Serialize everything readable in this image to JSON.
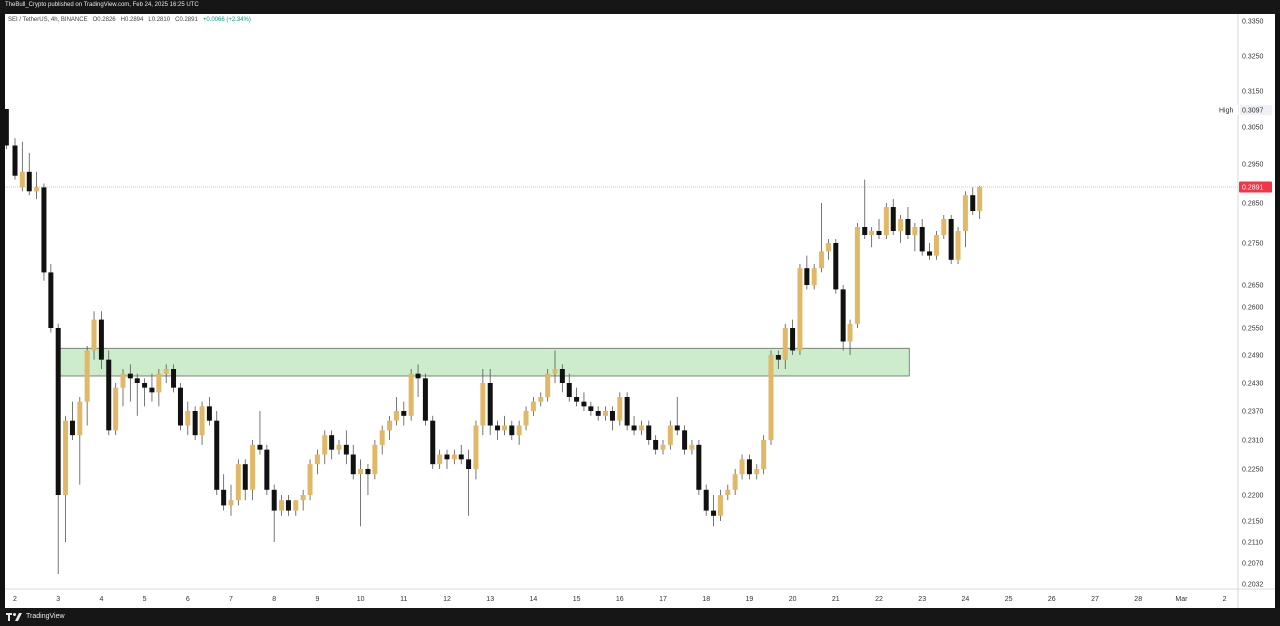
{
  "header": {
    "attribution": "TheBull_Crypto published on TradingView.com, Feb 24, 2025 16:25 UTC"
  },
  "legend": {
    "symbol": "SEI / TetherUS, 4h, BINANCE",
    "open_label": "O",
    "open": "0.2826",
    "high_label": "H",
    "high": "0.2894",
    "low_label": "L",
    "low": "0.2810",
    "close_label": "C",
    "close": "0.2891",
    "change": "+0.0066 (+2.34%)"
  },
  "footer": {
    "brand": "TradingView"
  },
  "chart_data": {
    "type": "candlestick",
    "instrument": "SEI / TetherUS",
    "interval": "4h",
    "exchange": "BINANCE",
    "colors": {
      "up": "#e2b866",
      "down": "#111111",
      "wick": "#555555",
      "last_price": "#f23645",
      "zone_fill": "#cdeccb",
      "zone_border": "#555555"
    },
    "y_axis": {
      "ticks": [
        "0.3350",
        "0.3250",
        "0.3150",
        "0.3050",
        "0.2950",
        "0.2850",
        "0.2750",
        "0.2650",
        "0.2600",
        "0.2550",
        "0.2490",
        "0.2430",
        "0.2370",
        "0.2310",
        "0.2250",
        "0.2200",
        "0.2150",
        "0.2110",
        "0.2070",
        "0.2032"
      ],
      "high_label": "High",
      "high_value": "0.3097",
      "last_value": "0.2891"
    },
    "x_axis": {
      "ticks": [
        {
          "label": "2",
          "t": 0
        },
        {
          "label": "3",
          "t": 1
        },
        {
          "label": "4",
          "t": 2
        },
        {
          "label": "5",
          "t": 3
        },
        {
          "label": "6",
          "t": 4
        },
        {
          "label": "7",
          "t": 5
        },
        {
          "label": "8",
          "t": 6
        },
        {
          "label": "9",
          "t": 7
        },
        {
          "label": "10",
          "t": 8
        },
        {
          "label": "11",
          "t": 9
        },
        {
          "label": "12",
          "t": 10
        },
        {
          "label": "13",
          "t": 11
        },
        {
          "label": "14",
          "t": 12
        },
        {
          "label": "15",
          "t": 13
        },
        {
          "label": "16",
          "t": 14
        },
        {
          "label": "17",
          "t": 15
        },
        {
          "label": "18",
          "t": 16
        },
        {
          "label": "19",
          "t": 17
        },
        {
          "label": "20",
          "t": 18
        },
        {
          "label": "21",
          "t": 19
        },
        {
          "label": "22",
          "t": 20
        },
        {
          "label": "23",
          "t": 21
        },
        {
          "label": "24",
          "t": 22
        },
        {
          "label": "25",
          "t": 23
        },
        {
          "label": "26",
          "t": 24
        },
        {
          "label": "27",
          "t": 25
        },
        {
          "label": "28",
          "t": 26
        },
        {
          "label": "Mar",
          "t": 27
        },
        {
          "label": "2",
          "t": 28
        }
      ]
    },
    "zone": {
      "low": 0.2445,
      "high": 0.2505,
      "t_start": 1.0,
      "t_end": 20.7
    },
    "last_price_line": 0.2891,
    "candles": [
      {
        "t": -0.2,
        "o": 0.31,
        "h": 0.31,
        "l": 0.299,
        "c": 0.3
      },
      {
        "t": 0.0,
        "o": 0.3,
        "h": 0.302,
        "l": 0.291,
        "c": 0.292
      },
      {
        "t": 0.17,
        "o": 0.289,
        "h": 0.301,
        "l": 0.288,
        "c": 0.293
      },
      {
        "t": 0.33,
        "o": 0.293,
        "h": 0.298,
        "l": 0.287,
        "c": 0.288
      },
      {
        "t": 0.5,
        "o": 0.288,
        "h": 0.293,
        "l": 0.286,
        "c": 0.289
      },
      {
        "t": 0.67,
        "o": 0.289,
        "h": 0.29,
        "l": 0.266,
        "c": 0.268
      },
      {
        "t": 0.83,
        "o": 0.268,
        "h": 0.27,
        "l": 0.254,
        "c": 0.255
      },
      {
        "t": 1.0,
        "o": 0.255,
        "h": 0.256,
        "l": 0.205,
        "c": 0.22
      },
      {
        "t": 1.17,
        "o": 0.22,
        "h": 0.236,
        "l": 0.211,
        "c": 0.235
      },
      {
        "t": 1.33,
        "o": 0.235,
        "h": 0.239,
        "l": 0.231,
        "c": 0.232
      },
      {
        "t": 1.5,
        "o": 0.232,
        "h": 0.24,
        "l": 0.222,
        "c": 0.239
      },
      {
        "t": 1.67,
        "o": 0.239,
        "h": 0.251,
        "l": 0.234,
        "c": 0.25
      },
      {
        "t": 1.83,
        "o": 0.25,
        "h": 0.259,
        "l": 0.248,
        "c": 0.257
      },
      {
        "t": 2.0,
        "o": 0.257,
        "h": 0.259,
        "l": 0.246,
        "c": 0.248
      },
      {
        "t": 2.17,
        "o": 0.248,
        "h": 0.25,
        "l": 0.232,
        "c": 0.233
      },
      {
        "t": 2.33,
        "o": 0.233,
        "h": 0.243,
        "l": 0.232,
        "c": 0.242
      },
      {
        "t": 2.5,
        "o": 0.242,
        "h": 0.246,
        "l": 0.238,
        "c": 0.245
      },
      {
        "t": 2.67,
        "o": 0.245,
        "h": 0.247,
        "l": 0.239,
        "c": 0.244
      },
      {
        "t": 2.83,
        "o": 0.244,
        "h": 0.245,
        "l": 0.236,
        "c": 0.243
      },
      {
        "t": 3.0,
        "o": 0.243,
        "h": 0.244,
        "l": 0.238,
        "c": 0.242
      },
      {
        "t": 3.17,
        "o": 0.242,
        "h": 0.245,
        "l": 0.239,
        "c": 0.241
      },
      {
        "t": 3.33,
        "o": 0.241,
        "h": 0.246,
        "l": 0.238,
        "c": 0.245
      },
      {
        "t": 3.5,
        "o": 0.245,
        "h": 0.247,
        "l": 0.243,
        "c": 0.246
      },
      {
        "t": 3.67,
        "o": 0.246,
        "h": 0.247,
        "l": 0.241,
        "c": 0.242
      },
      {
        "t": 3.83,
        "o": 0.242,
        "h": 0.243,
        "l": 0.233,
        "c": 0.234
      },
      {
        "t": 4.0,
        "o": 0.234,
        "h": 0.239,
        "l": 0.232,
        "c": 0.237
      },
      {
        "t": 4.17,
        "o": 0.237,
        "h": 0.238,
        "l": 0.231,
        "c": 0.232
      },
      {
        "t": 4.33,
        "o": 0.232,
        "h": 0.239,
        "l": 0.23,
        "c": 0.238
      },
      {
        "t": 4.5,
        "o": 0.238,
        "h": 0.24,
        "l": 0.234,
        "c": 0.235
      },
      {
        "t": 4.67,
        "o": 0.235,
        "h": 0.237,
        "l": 0.22,
        "c": 0.221
      },
      {
        "t": 4.83,
        "o": 0.221,
        "h": 0.224,
        "l": 0.217,
        "c": 0.218
      },
      {
        "t": 5.0,
        "o": 0.218,
        "h": 0.222,
        "l": 0.216,
        "c": 0.219
      },
      {
        "t": 5.17,
        "o": 0.219,
        "h": 0.227,
        "l": 0.218,
        "c": 0.226
      },
      {
        "t": 5.33,
        "o": 0.226,
        "h": 0.227,
        "l": 0.219,
        "c": 0.221
      },
      {
        "t": 5.5,
        "o": 0.221,
        "h": 0.231,
        "l": 0.219,
        "c": 0.23
      },
      {
        "t": 5.67,
        "o": 0.23,
        "h": 0.237,
        "l": 0.228,
        "c": 0.229
      },
      {
        "t": 5.83,
        "o": 0.229,
        "h": 0.23,
        "l": 0.22,
        "c": 0.221
      },
      {
        "t": 6.0,
        "o": 0.221,
        "h": 0.222,
        "l": 0.211,
        "c": 0.217
      },
      {
        "t": 6.17,
        "o": 0.217,
        "h": 0.22,
        "l": 0.216,
        "c": 0.219
      },
      {
        "t": 6.33,
        "o": 0.219,
        "h": 0.22,
        "l": 0.216,
        "c": 0.217
      },
      {
        "t": 6.5,
        "o": 0.217,
        "h": 0.219,
        "l": 0.216,
        "c": 0.219
      },
      {
        "t": 6.67,
        "o": 0.219,
        "h": 0.221,
        "l": 0.217,
        "c": 0.22
      },
      {
        "t": 6.83,
        "o": 0.22,
        "h": 0.227,
        "l": 0.219,
        "c": 0.226
      },
      {
        "t": 7.0,
        "o": 0.226,
        "h": 0.229,
        "l": 0.224,
        "c": 0.228
      },
      {
        "t": 7.17,
        "o": 0.228,
        "h": 0.233,
        "l": 0.226,
        "c": 0.232
      },
      {
        "t": 7.33,
        "o": 0.232,
        "h": 0.233,
        "l": 0.227,
        "c": 0.229
      },
      {
        "t": 7.5,
        "o": 0.229,
        "h": 0.231,
        "l": 0.228,
        "c": 0.23
      },
      {
        "t": 7.67,
        "o": 0.23,
        "h": 0.233,
        "l": 0.226,
        "c": 0.228
      },
      {
        "t": 7.83,
        "o": 0.228,
        "h": 0.23,
        "l": 0.223,
        "c": 0.224
      },
      {
        "t": 8.0,
        "o": 0.224,
        "h": 0.227,
        "l": 0.214,
        "c": 0.225
      },
      {
        "t": 8.17,
        "o": 0.225,
        "h": 0.226,
        "l": 0.22,
        "c": 0.224
      },
      {
        "t": 8.33,
        "o": 0.224,
        "h": 0.231,
        "l": 0.223,
        "c": 0.23
      },
      {
        "t": 8.5,
        "o": 0.23,
        "h": 0.234,
        "l": 0.228,
        "c": 0.233
      },
      {
        "t": 8.67,
        "o": 0.233,
        "h": 0.236,
        "l": 0.231,
        "c": 0.235
      },
      {
        "t": 8.83,
        "o": 0.235,
        "h": 0.24,
        "l": 0.234,
        "c": 0.237
      },
      {
        "t": 9.0,
        "o": 0.237,
        "h": 0.239,
        "l": 0.234,
        "c": 0.236
      },
      {
        "t": 9.17,
        "o": 0.236,
        "h": 0.246,
        "l": 0.235,
        "c": 0.245
      },
      {
        "t": 9.33,
        "o": 0.245,
        "h": 0.247,
        "l": 0.24,
        "c": 0.244
      },
      {
        "t": 9.5,
        "o": 0.244,
        "h": 0.245,
        "l": 0.234,
        "c": 0.235
      },
      {
        "t": 9.67,
        "o": 0.235,
        "h": 0.236,
        "l": 0.225,
        "c": 0.226
      },
      {
        "t": 9.83,
        "o": 0.226,
        "h": 0.229,
        "l": 0.225,
        "c": 0.228
      },
      {
        "t": 10.0,
        "o": 0.228,
        "h": 0.229,
        "l": 0.225,
        "c": 0.227
      },
      {
        "t": 10.17,
        "o": 0.227,
        "h": 0.229,
        "l": 0.226,
        "c": 0.228
      },
      {
        "t": 10.33,
        "o": 0.228,
        "h": 0.23,
        "l": 0.226,
        "c": 0.227
      },
      {
        "t": 10.5,
        "o": 0.227,
        "h": 0.229,
        "l": 0.216,
        "c": 0.225
      },
      {
        "t": 10.67,
        "o": 0.225,
        "h": 0.235,
        "l": 0.223,
        "c": 0.234
      },
      {
        "t": 10.83,
        "o": 0.234,
        "h": 0.246,
        "l": 0.232,
        "c": 0.243
      },
      {
        "t": 11.0,
        "o": 0.243,
        "h": 0.246,
        "l": 0.232,
        "c": 0.234
      },
      {
        "t": 11.17,
        "o": 0.234,
        "h": 0.235,
        "l": 0.231,
        "c": 0.233
      },
      {
        "t": 11.33,
        "o": 0.233,
        "h": 0.236,
        "l": 0.232,
        "c": 0.234
      },
      {
        "t": 11.5,
        "o": 0.234,
        "h": 0.235,
        "l": 0.231,
        "c": 0.232
      },
      {
        "t": 11.67,
        "o": 0.232,
        "h": 0.235,
        "l": 0.23,
        "c": 0.234
      },
      {
        "t": 11.83,
        "o": 0.234,
        "h": 0.238,
        "l": 0.233,
        "c": 0.237
      },
      {
        "t": 12.0,
        "o": 0.237,
        "h": 0.24,
        "l": 0.236,
        "c": 0.239
      },
      {
        "t": 12.17,
        "o": 0.239,
        "h": 0.241,
        "l": 0.238,
        "c": 0.24
      },
      {
        "t": 12.33,
        "o": 0.24,
        "h": 0.246,
        "l": 0.239,
        "c": 0.245
      },
      {
        "t": 12.5,
        "o": 0.245,
        "h": 0.25,
        "l": 0.243,
        "c": 0.246
      },
      {
        "t": 12.67,
        "o": 0.246,
        "h": 0.247,
        "l": 0.241,
        "c": 0.243
      },
      {
        "t": 12.83,
        "o": 0.243,
        "h": 0.245,
        "l": 0.239,
        "c": 0.24
      },
      {
        "t": 13.0,
        "o": 0.24,
        "h": 0.242,
        "l": 0.238,
        "c": 0.239
      },
      {
        "t": 13.17,
        "o": 0.239,
        "h": 0.241,
        "l": 0.237,
        "c": 0.238
      },
      {
        "t": 13.33,
        "o": 0.238,
        "h": 0.239,
        "l": 0.236,
        "c": 0.237
      },
      {
        "t": 13.5,
        "o": 0.237,
        "h": 0.238,
        "l": 0.235,
        "c": 0.236
      },
      {
        "t": 13.67,
        "o": 0.236,
        "h": 0.238,
        "l": 0.235,
        "c": 0.237
      },
      {
        "t": 13.83,
        "o": 0.237,
        "h": 0.238,
        "l": 0.233,
        "c": 0.235
      },
      {
        "t": 14.0,
        "o": 0.235,
        "h": 0.241,
        "l": 0.234,
        "c": 0.24
      },
      {
        "t": 14.17,
        "o": 0.24,
        "h": 0.241,
        "l": 0.233,
        "c": 0.234
      },
      {
        "t": 14.33,
        "o": 0.234,
        "h": 0.236,
        "l": 0.232,
        "c": 0.233
      },
      {
        "t": 14.5,
        "o": 0.233,
        "h": 0.235,
        "l": 0.232,
        "c": 0.234
      },
      {
        "t": 14.67,
        "o": 0.234,
        "h": 0.235,
        "l": 0.23,
        "c": 0.231
      },
      {
        "t": 14.83,
        "o": 0.231,
        "h": 0.232,
        "l": 0.228,
        "c": 0.229
      },
      {
        "t": 15.0,
        "o": 0.229,
        "h": 0.231,
        "l": 0.228,
        "c": 0.23
      },
      {
        "t": 15.17,
        "o": 0.23,
        "h": 0.235,
        "l": 0.229,
        "c": 0.234
      },
      {
        "t": 15.33,
        "o": 0.234,
        "h": 0.24,
        "l": 0.232,
        "c": 0.233
      },
      {
        "t": 15.5,
        "o": 0.233,
        "h": 0.234,
        "l": 0.228,
        "c": 0.229
      },
      {
        "t": 15.67,
        "o": 0.229,
        "h": 0.231,
        "l": 0.228,
        "c": 0.23
      },
      {
        "t": 15.83,
        "o": 0.23,
        "h": 0.231,
        "l": 0.22,
        "c": 0.221
      },
      {
        "t": 16.0,
        "o": 0.221,
        "h": 0.222,
        "l": 0.216,
        "c": 0.217
      },
      {
        "t": 16.17,
        "o": 0.217,
        "h": 0.22,
        "l": 0.214,
        "c": 0.216
      },
      {
        "t": 16.33,
        "o": 0.216,
        "h": 0.221,
        "l": 0.215,
        "c": 0.22
      },
      {
        "t": 16.5,
        "o": 0.22,
        "h": 0.222,
        "l": 0.219,
        "c": 0.221
      },
      {
        "t": 16.67,
        "o": 0.221,
        "h": 0.225,
        "l": 0.22,
        "c": 0.224
      },
      {
        "t": 16.83,
        "o": 0.224,
        "h": 0.228,
        "l": 0.223,
        "c": 0.227
      },
      {
        "t": 17.0,
        "o": 0.227,
        "h": 0.228,
        "l": 0.223,
        "c": 0.224
      },
      {
        "t": 17.17,
        "o": 0.224,
        "h": 0.226,
        "l": 0.223,
        "c": 0.225
      },
      {
        "t": 17.33,
        "o": 0.225,
        "h": 0.232,
        "l": 0.224,
        "c": 0.231
      },
      {
        "t": 17.5,
        "o": 0.231,
        "h": 0.25,
        "l": 0.23,
        "c": 0.249
      },
      {
        "t": 17.67,
        "o": 0.249,
        "h": 0.25,
        "l": 0.246,
        "c": 0.248
      },
      {
        "t": 17.83,
        "o": 0.248,
        "h": 0.256,
        "l": 0.246,
        "c": 0.255
      },
      {
        "t": 18.0,
        "o": 0.255,
        "h": 0.257,
        "l": 0.249,
        "c": 0.25
      },
      {
        "t": 18.17,
        "o": 0.25,
        "h": 0.27,
        "l": 0.249,
        "c": 0.269
      },
      {
        "t": 18.33,
        "o": 0.269,
        "h": 0.272,
        "l": 0.264,
        "c": 0.265
      },
      {
        "t": 18.5,
        "o": 0.265,
        "h": 0.27,
        "l": 0.264,
        "c": 0.269
      },
      {
        "t": 18.67,
        "o": 0.269,
        "h": 0.285,
        "l": 0.268,
        "c": 0.273
      },
      {
        "t": 18.83,
        "o": 0.273,
        "h": 0.276,
        "l": 0.271,
        "c": 0.275
      },
      {
        "t": 19.0,
        "o": 0.275,
        "h": 0.276,
        "l": 0.263,
        "c": 0.264
      },
      {
        "t": 19.17,
        "o": 0.264,
        "h": 0.265,
        "l": 0.25,
        "c": 0.252
      },
      {
        "t": 19.33,
        "o": 0.252,
        "h": 0.257,
        "l": 0.249,
        "c": 0.256
      },
      {
        "t": 19.5,
        "o": 0.256,
        "h": 0.28,
        "l": 0.255,
        "c": 0.279
      },
      {
        "t": 19.67,
        "o": 0.279,
        "h": 0.291,
        "l": 0.276,
        "c": 0.277
      },
      {
        "t": 19.83,
        "o": 0.277,
        "h": 0.279,
        "l": 0.274,
        "c": 0.278
      },
      {
        "t": 20.0,
        "o": 0.278,
        "h": 0.281,
        "l": 0.276,
        "c": 0.277
      },
      {
        "t": 20.17,
        "o": 0.277,
        "h": 0.285,
        "l": 0.276,
        "c": 0.284
      },
      {
        "t": 20.33,
        "o": 0.284,
        "h": 0.286,
        "l": 0.277,
        "c": 0.278
      },
      {
        "t": 20.5,
        "o": 0.278,
        "h": 0.282,
        "l": 0.275,
        "c": 0.281
      },
      {
        "t": 20.67,
        "o": 0.281,
        "h": 0.284,
        "l": 0.276,
        "c": 0.277
      },
      {
        "t": 20.83,
        "o": 0.277,
        "h": 0.28,
        "l": 0.273,
        "c": 0.279
      },
      {
        "t": 21.0,
        "o": 0.279,
        "h": 0.281,
        "l": 0.272,
        "c": 0.273
      },
      {
        "t": 21.17,
        "o": 0.273,
        "h": 0.275,
        "l": 0.271,
        "c": 0.272
      },
      {
        "t": 21.33,
        "o": 0.272,
        "h": 0.278,
        "l": 0.271,
        "c": 0.277
      },
      {
        "t": 21.5,
        "o": 0.277,
        "h": 0.282,
        "l": 0.276,
        "c": 0.281
      },
      {
        "t": 21.67,
        "o": 0.281,
        "h": 0.282,
        "l": 0.27,
        "c": 0.271
      },
      {
        "t": 21.83,
        "o": 0.271,
        "h": 0.279,
        "l": 0.27,
        "c": 0.278
      },
      {
        "t": 22.0,
        "o": 0.278,
        "h": 0.288,
        "l": 0.274,
        "c": 0.287
      },
      {
        "t": 22.17,
        "o": 0.287,
        "h": 0.289,
        "l": 0.282,
        "c": 0.283
      },
      {
        "t": 22.33,
        "o": 0.283,
        "h": 0.2894,
        "l": 0.281,
        "c": 0.2891
      }
    ]
  }
}
